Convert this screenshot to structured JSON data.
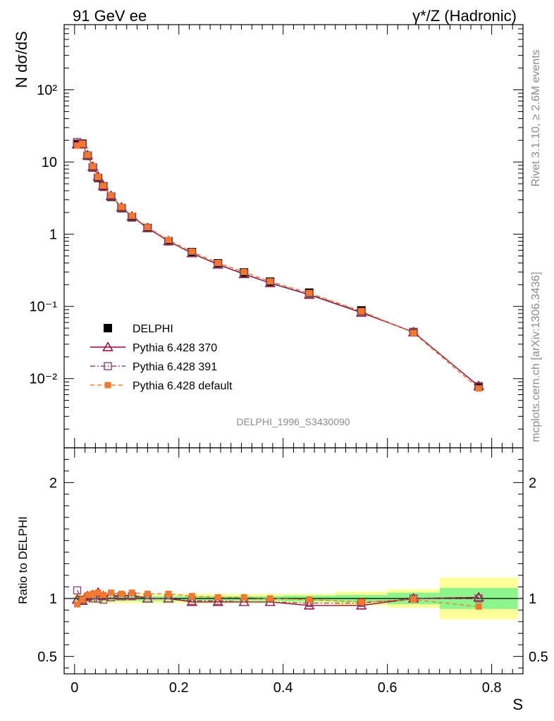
{
  "header": {
    "left_title": "91 GeV ee",
    "right_title": "γ*/Z (Hadronic)"
  },
  "side_labels": {
    "rivet": "Rivet 3.1.10, ≥ 2.6M events",
    "mcplots": "mcplots.cern.ch [arXiv:1306.3436]"
  },
  "analysis_id": "DELPHI_1996_S3430090",
  "colors": {
    "data": "#000000",
    "pythia370": "#990033",
    "pythia391": "#8c4a6b",
    "pythia_default": "#f5782d",
    "band_inner": "#8cf58c",
    "band_outer": "#ffff99"
  },
  "chart_data": [
    {
      "type": "scatter",
      "panel": "main",
      "ylabel": "N dσ/dS",
      "log_y": true,
      "ylim": [
        0.0011,
        800
      ],
      "xlim": [
        -0.02,
        0.86
      ],
      "y_ticks": [
        "10⁻²",
        "10⁻¹",
        "1",
        "10",
        "10²"
      ],
      "x": [
        0.005,
        0.015,
        0.025,
        0.035,
        0.045,
        0.055,
        0.07,
        0.09,
        0.11,
        0.14,
        0.18,
        0.225,
        0.275,
        0.325,
        0.375,
        0.45,
        0.55,
        0.65,
        0.775
      ],
      "x_bin_edges": [
        0.0,
        0.01,
        0.02,
        0.03,
        0.04,
        0.05,
        0.06,
        0.08,
        0.1,
        0.12,
        0.16,
        0.2,
        0.25,
        0.3,
        0.35,
        0.4,
        0.5,
        0.6,
        0.7,
        0.85
      ],
      "legend": {
        "placement": "lower-left",
        "entries": [
          "DELPHI",
          "Pythia 6.428 370",
          "Pythia 6.428 391",
          "Pythia 6.428 default"
        ]
      },
      "series": [
        {
          "name": "DELPHI",
          "marker": "filled-square",
          "values": [
            17.8,
            18.0,
            12.2,
            8.4,
            6.0,
            4.6,
            3.3,
            2.3,
            1.72,
            1.22,
            0.8,
            0.565,
            0.395,
            0.295,
            0.22,
            0.155,
            0.088,
            0.044,
            0.0078
          ]
        },
        {
          "name": "Pythia 6.428 370",
          "marker": "open-triangle",
          "line": "solid",
          "values": [
            17.5,
            17.6,
            12.4,
            8.6,
            6.3,
            4.7,
            3.4,
            2.35,
            1.76,
            1.22,
            0.8,
            0.545,
            0.38,
            0.28,
            0.21,
            0.145,
            0.082,
            0.044,
            0.0079
          ]
        },
        {
          "name": "Pythia 6.428 391",
          "marker": "open-square",
          "line": "dash-dot",
          "values": [
            19.0,
            17.9,
            12.3,
            8.4,
            6.0,
            4.5,
            3.35,
            2.33,
            1.75,
            1.21,
            0.8,
            0.55,
            0.385,
            0.285,
            0.213,
            0.148,
            0.084,
            0.044,
            0.0078
          ]
        },
        {
          "name": "Pythia 6.428 default",
          "marker": "filled-small-square",
          "line": "dashed",
          "values": [
            16.9,
            17.8,
            12.5,
            8.7,
            6.2,
            4.7,
            3.45,
            2.38,
            1.8,
            1.25,
            0.83,
            0.575,
            0.4,
            0.3,
            0.222,
            0.153,
            0.086,
            0.043,
            0.0073
          ]
        }
      ]
    },
    {
      "type": "scatter",
      "panel": "ratio",
      "xlabel": "S",
      "ylabel": "Ratio to DELPHI",
      "ylim": [
        0.35,
        2.3
      ],
      "xlim": [
        -0.02,
        0.86
      ],
      "x_ticks": [
        "0",
        "0.2",
        "0.4",
        "0.6",
        "0.8"
      ],
      "y_ticks": [
        "0.5",
        "1",
        "2"
      ],
      "x": [
        0.005,
        0.015,
        0.025,
        0.035,
        0.045,
        0.055,
        0.07,
        0.09,
        0.11,
        0.14,
        0.18,
        0.225,
        0.275,
        0.325,
        0.375,
        0.45,
        0.55,
        0.65,
        0.775
      ],
      "uncertainty_band": {
        "bin_edges": [
          0.0,
          0.01,
          0.02,
          0.03,
          0.04,
          0.05,
          0.06,
          0.08,
          0.1,
          0.12,
          0.16,
          0.2,
          0.25,
          0.3,
          0.35,
          0.4,
          0.5,
          0.6,
          0.7,
          0.85
        ],
        "stat": [
          0.02,
          0.02,
          0.02,
          0.02,
          0.02,
          0.02,
          0.02,
          0.02,
          0.02,
          0.02,
          0.02,
          0.02,
          0.02,
          0.02,
          0.02,
          0.025,
          0.03,
          0.05,
          0.09
        ],
        "total": [
          0.04,
          0.04,
          0.04,
          0.04,
          0.04,
          0.04,
          0.04,
          0.04,
          0.04,
          0.04,
          0.04,
          0.04,
          0.04,
          0.04,
          0.04,
          0.04,
          0.06,
          0.08,
          0.18
        ]
      },
      "series": [
        {
          "name": "Pythia 6.428 370",
          "values": [
            0.99,
            0.98,
            1.02,
            1.03,
            1.05,
            1.02,
            1.03,
            1.02,
            1.03,
            1.0,
            1.0,
            0.97,
            0.97,
            0.97,
            0.97,
            0.94,
            0.94,
            1.0,
            1.01
          ]
        },
        {
          "name": "Pythia 6.428 391",
          "values": [
            1.07,
            0.99,
            1.01,
            1.0,
            1.0,
            0.99,
            1.01,
            1.02,
            1.02,
            1.0,
            1.0,
            0.98,
            0.98,
            0.97,
            0.97,
            0.96,
            0.96,
            1.0,
            1.0
          ]
        },
        {
          "name": "Pythia 6.428 default",
          "values": [
            0.95,
            0.99,
            1.03,
            1.04,
            1.05,
            1.03,
            1.05,
            1.04,
            1.05,
            1.04,
            1.04,
            1.02,
            1.01,
            1.01,
            1.0,
            0.99,
            0.97,
            0.99,
            0.93
          ]
        }
      ]
    }
  ]
}
